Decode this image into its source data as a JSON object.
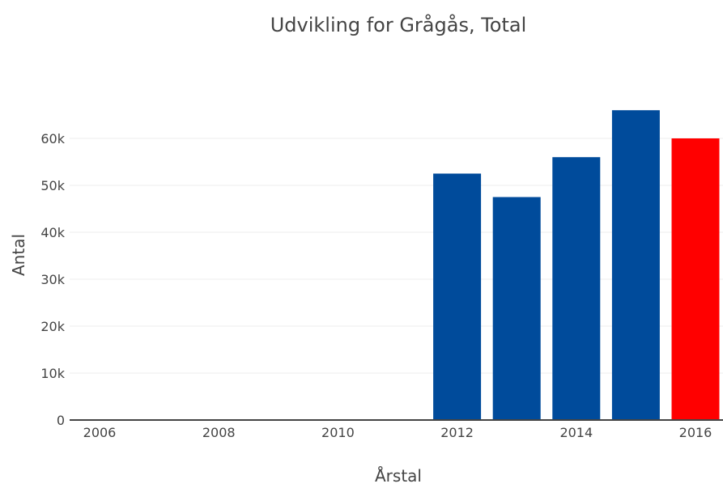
{
  "chart_data": {
    "type": "bar",
    "title": "Udvikling for Grågås, Total",
    "xlabel": "Årstal",
    "ylabel": "Antal",
    "x_ticks": [
      "2006",
      "2008",
      "2010",
      "2012",
      "2014",
      "2016"
    ],
    "y_ticks": [
      "0",
      "10k",
      "20k",
      "30k",
      "40k",
      "50k",
      "60k"
    ],
    "ylim": [
      0,
      70000
    ],
    "grid": true,
    "bars": [
      {
        "year": 2012,
        "value": 52500,
        "color": "#004b9b"
      },
      {
        "year": 2013,
        "value": 47500,
        "color": "#004b9b"
      },
      {
        "year": 2014,
        "value": 56000,
        "color": "#004b9b"
      },
      {
        "year": 2015,
        "value": 66000,
        "color": "#004b9b"
      },
      {
        "year": 2016,
        "value": 60000,
        "color": "#ff0000"
      }
    ]
  }
}
